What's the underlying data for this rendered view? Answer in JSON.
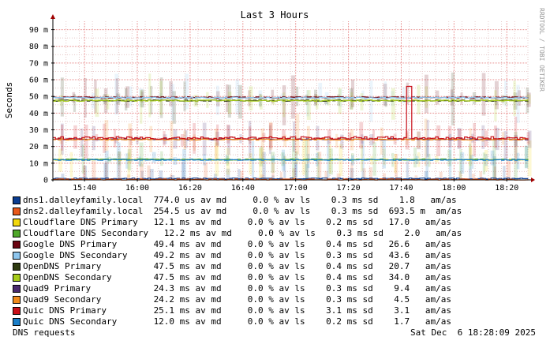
{
  "chart_data": {
    "type": "line",
    "title": "Last 3 Hours",
    "ylabel": "Seconds",
    "watermark": "RRDTOOL / TOBI OETIKER",
    "ylim": [
      0,
      95
    ],
    "yticks": [
      {
        "value": 0,
        "label": "0"
      },
      {
        "value": 10,
        "label": "10 m"
      },
      {
        "value": 20,
        "label": "20 m"
      },
      {
        "value": 30,
        "label": "30 m"
      },
      {
        "value": 40,
        "label": "40 m"
      },
      {
        "value": 50,
        "label": "50 m"
      },
      {
        "value": 60,
        "label": "60 m"
      },
      {
        "value": 70,
        "label": "70 m"
      },
      {
        "value": 80,
        "label": "80 m"
      },
      {
        "value": 90,
        "label": "90 m"
      }
    ],
    "xlim": [
      "15:28",
      "18:28"
    ],
    "xticks": [
      {
        "time": "15:40",
        "label": "15:40"
      },
      {
        "time": "16:00",
        "label": "16:00"
      },
      {
        "time": "16:20",
        "label": "16:20"
      },
      {
        "time": "16:40",
        "label": "16:40"
      },
      {
        "time": "17:00",
        "label": "17:00"
      },
      {
        "time": "17:20",
        "label": "17:20"
      },
      {
        "time": "17:40",
        "label": "17:40"
      },
      {
        "time": "18:00",
        "label": "18:00"
      },
      {
        "time": "18:20",
        "label": "18:20"
      }
    ],
    "grid": true,
    "series": [
      {
        "name": "dns1.dalleyfamily.local",
        "color": "#0b3d91",
        "avg_ms": 0.774,
        "loss": "0.0 %",
        "sd_ms": 0.3,
        "am": "1.8",
        "stats": "dns1.dalleyfamily.local  774.0 us av md     0.0 % av ls    0.3 ms sd    1.8   am/as"
      },
      {
        "name": "dns2.dalleyfamily.local",
        "color": "#e8581a",
        "avg_ms": 0.2545,
        "loss": "0.0 %",
        "sd_ms": 0.3,
        "am": "693.5 m",
        "stats": "dns2.dalleyfamily.local  254.5 us av md     0.0 % av ls    0.3 ms sd  693.5 m  am/as"
      },
      {
        "name": "Cloudflare DNS Primary",
        "color": "#f2d80c",
        "avg_ms": 12.1,
        "loss": "0.0 %",
        "sd_ms": 0.2,
        "am": "17.0",
        "stats": "Cloudflare DNS Primary   12.1 ms av md     0.0 % av ls    0.2 ms sd   17.0   am/as"
      },
      {
        "name": "Cloudflare DNS Secondary",
        "color": "#4fa82a",
        "avg_ms": 12.2,
        "loss": "0.0 %",
        "sd_ms": 0.3,
        "am": "2.0",
        "stats": "Cloudflare DNS Secondary   12.2 ms av md     0.0 % av ls    0.3 ms sd    2.0   am/as"
      },
      {
        "name": "Google DNS Primary",
        "color": "#6b0512",
        "avg_ms": 49.4,
        "loss": "0.0 %",
        "sd_ms": 0.4,
        "am": "26.6",
        "stats": "Google DNS Primary       49.4 ms av md     0.0 % av ls    0.4 ms sd   26.6   am/as"
      },
      {
        "name": "Google DNS Secondary",
        "color": "#8ec6ee",
        "avg_ms": 49.2,
        "loss": "0.0 %",
        "sd_ms": 0.3,
        "am": "43.6",
        "stats": "Google DNS Secondary     49.2 ms av md     0.0 % av ls    0.3 ms sd   43.6   am/as"
      },
      {
        "name": "OpenDNS Primary",
        "color": "#2e3a10",
        "avg_ms": 47.5,
        "loss": "0.0 %",
        "sd_ms": 0.4,
        "am": "20.7",
        "stats": "OpenDNS Primary          47.5 ms av md     0.0 % av ls    0.4 ms sd   20.7   am/as"
      },
      {
        "name": "OpenDNS Secondary",
        "color": "#a6cc1a",
        "avg_ms": 47.5,
        "loss": "0.0 %",
        "sd_ms": 0.4,
        "am": "34.0",
        "stats": "OpenDNS Secondary        47.5 ms av md     0.0 % av ls    0.4 ms sd   34.0   am/as"
      },
      {
        "name": "Quad9 Primary",
        "color": "#4a2a6e",
        "avg_ms": 24.3,
        "loss": "0.0 %",
        "sd_ms": 0.3,
        "am": "9.4",
        "stats": "Quad9 Primary            24.3 ms av md     0.0 % av ls    0.3 ms sd    9.4   am/as"
      },
      {
        "name": "Quad9 Secondary",
        "color": "#f08a1c",
        "avg_ms": 24.2,
        "loss": "0.0 %",
        "sd_ms": 0.3,
        "am": "4.5",
        "stats": "Quad9 Secondary          24.2 ms av md     0.0 % av ls    0.3 ms sd    4.5   am/as"
      },
      {
        "name": "Quic DNS Primary",
        "color": "#c8101a",
        "avg_ms": 25.1,
        "loss": "0.0 %",
        "sd_ms": 3.1,
        "am": "3.1",
        "stats": "Quic DNS Primary         25.1 ms av md     0.0 % av ls    3.1 ms sd    3.1   am/as"
      },
      {
        "name": "Quic DNS Secondary",
        "color": "#1a7ec8",
        "avg_ms": 12.0,
        "loss": "0.0 %",
        "sd_ms": 0.2,
        "am": "1.7",
        "stats": "Quic DNS Secondary       12.0 ms av md     0.0 % av ls    0.2 ms sd    1.7   am/as"
      }
    ],
    "spike": {
      "series": "Quic DNS Primary",
      "time": "17:42",
      "value": 56
    },
    "footer_left": "DNS requests",
    "footer_right": "Sat Dec  6 18:28:09 2025"
  }
}
